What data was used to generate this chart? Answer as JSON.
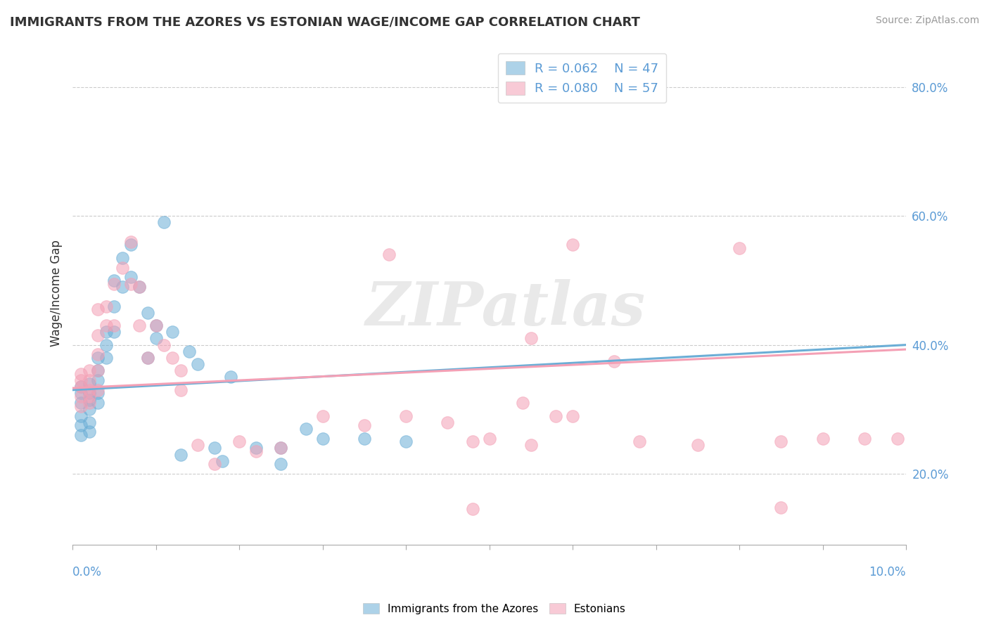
{
  "title": "IMMIGRANTS FROM THE AZORES VS ESTONIAN WAGE/INCOME GAP CORRELATION CHART",
  "source": "Source: ZipAtlas.com",
  "ylabel": "Wage/Income Gap",
  "legend_blue_r": "R = 0.062",
  "legend_blue_n": "N = 47",
  "legend_pink_r": "R = 0.080",
  "legend_pink_n": "N = 57",
  "legend_label_blue": "Immigrants from the Azores",
  "legend_label_pink": "Estonians",
  "watermark": "ZIPatlas",
  "xlim": [
    0.0,
    0.1
  ],
  "ylim": [
    0.09,
    0.87
  ],
  "yticks": [
    0.2,
    0.4,
    0.6,
    0.8
  ],
  "ytick_labels": [
    "20.0%",
    "40.0%",
    "60.0%",
    "80.0%"
  ],
  "xtick_left_label": "0.0%",
  "xtick_right_label": "10.0%",
  "blue_color": "#6baed6",
  "pink_color": "#f4a0b5",
  "blue_scatter": [
    [
      0.001,
      0.335
    ],
    [
      0.001,
      0.325
    ],
    [
      0.001,
      0.31
    ],
    [
      0.001,
      0.29
    ],
    [
      0.001,
      0.275
    ],
    [
      0.001,
      0.26
    ],
    [
      0.002,
      0.34
    ],
    [
      0.002,
      0.325
    ],
    [
      0.002,
      0.315
    ],
    [
      0.002,
      0.3
    ],
    [
      0.002,
      0.28
    ],
    [
      0.002,
      0.265
    ],
    [
      0.003,
      0.38
    ],
    [
      0.003,
      0.36
    ],
    [
      0.003,
      0.345
    ],
    [
      0.003,
      0.325
    ],
    [
      0.003,
      0.31
    ],
    [
      0.004,
      0.42
    ],
    [
      0.004,
      0.4
    ],
    [
      0.004,
      0.38
    ],
    [
      0.005,
      0.5
    ],
    [
      0.005,
      0.46
    ],
    [
      0.005,
      0.42
    ],
    [
      0.006,
      0.535
    ],
    [
      0.006,
      0.49
    ],
    [
      0.007,
      0.555
    ],
    [
      0.007,
      0.505
    ],
    [
      0.008,
      0.49
    ],
    [
      0.009,
      0.45
    ],
    [
      0.009,
      0.38
    ],
    [
      0.01,
      0.43
    ],
    [
      0.01,
      0.41
    ],
    [
      0.011,
      0.59
    ],
    [
      0.012,
      0.42
    ],
    [
      0.013,
      0.23
    ],
    [
      0.014,
      0.39
    ],
    [
      0.015,
      0.37
    ],
    [
      0.017,
      0.24
    ],
    [
      0.018,
      0.22
    ],
    [
      0.019,
      0.35
    ],
    [
      0.022,
      0.24
    ],
    [
      0.025,
      0.24
    ],
    [
      0.025,
      0.215
    ],
    [
      0.028,
      0.27
    ],
    [
      0.03,
      0.255
    ],
    [
      0.035,
      0.255
    ],
    [
      0.04,
      0.25
    ]
  ],
  "pink_scatter": [
    [
      0.001,
      0.355
    ],
    [
      0.001,
      0.345
    ],
    [
      0.001,
      0.335
    ],
    [
      0.001,
      0.32
    ],
    [
      0.001,
      0.305
    ],
    [
      0.002,
      0.36
    ],
    [
      0.002,
      0.345
    ],
    [
      0.002,
      0.33
    ],
    [
      0.002,
      0.32
    ],
    [
      0.002,
      0.31
    ],
    [
      0.003,
      0.455
    ],
    [
      0.003,
      0.415
    ],
    [
      0.003,
      0.385
    ],
    [
      0.003,
      0.36
    ],
    [
      0.003,
      0.33
    ],
    [
      0.004,
      0.46
    ],
    [
      0.004,
      0.43
    ],
    [
      0.005,
      0.495
    ],
    [
      0.005,
      0.43
    ],
    [
      0.006,
      0.52
    ],
    [
      0.007,
      0.56
    ],
    [
      0.007,
      0.495
    ],
    [
      0.008,
      0.49
    ],
    [
      0.008,
      0.43
    ],
    [
      0.009,
      0.38
    ],
    [
      0.01,
      0.43
    ],
    [
      0.011,
      0.4
    ],
    [
      0.012,
      0.38
    ],
    [
      0.013,
      0.36
    ],
    [
      0.013,
      0.33
    ],
    [
      0.015,
      0.245
    ],
    [
      0.017,
      0.215
    ],
    [
      0.02,
      0.25
    ],
    [
      0.022,
      0.235
    ],
    [
      0.025,
      0.24
    ],
    [
      0.03,
      0.29
    ],
    [
      0.035,
      0.275
    ],
    [
      0.04,
      0.29
    ],
    [
      0.045,
      0.28
    ],
    [
      0.048,
      0.25
    ],
    [
      0.05,
      0.255
    ],
    [
      0.054,
      0.31
    ],
    [
      0.055,
      0.245
    ],
    [
      0.058,
      0.29
    ],
    [
      0.06,
      0.29
    ],
    [
      0.065,
      0.375
    ],
    [
      0.068,
      0.25
    ],
    [
      0.075,
      0.245
    ],
    [
      0.08,
      0.55
    ],
    [
      0.085,
      0.25
    ],
    [
      0.09,
      0.255
    ],
    [
      0.095,
      0.255
    ],
    [
      0.099,
      0.255
    ],
    [
      0.048,
      0.145
    ],
    [
      0.085,
      0.148
    ],
    [
      0.055,
      0.41
    ],
    [
      0.06,
      0.555
    ],
    [
      0.038,
      0.54
    ]
  ],
  "blue_trend_x": [
    0.0,
    0.1
  ],
  "blue_trend_y": [
    0.33,
    0.4
  ],
  "pink_trend_x": [
    0.0,
    0.1
  ],
  "pink_trend_y": [
    0.333,
    0.393
  ],
  "background_color": "#ffffff",
  "grid_color": "#cccccc",
  "title_color": "#333333",
  "ylabel_color": "#333333",
  "tick_label_color": "#5b9bd5",
  "source_color": "#999999"
}
